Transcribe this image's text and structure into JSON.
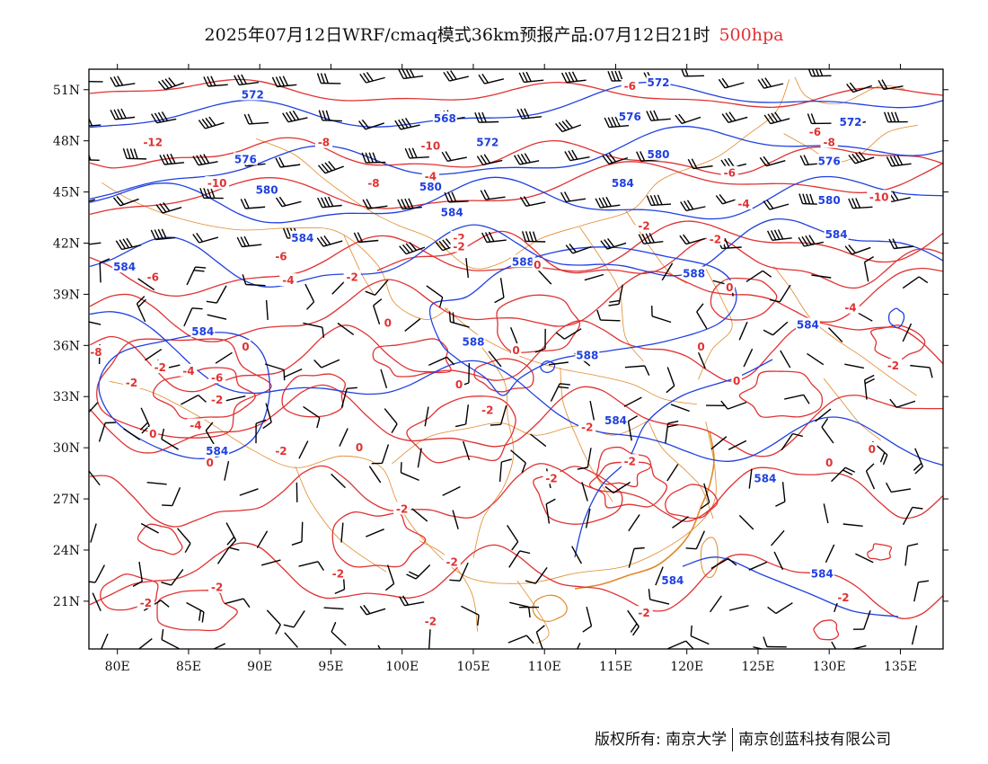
{
  "title": {
    "main": "2025年07月12日WRF/cmaq模式36km预报产品:07月12日21时",
    "level": "500hpa"
  },
  "axes": {
    "lat_labels": [
      "51N",
      "48N",
      "45N",
      "42N",
      "39N",
      "36N",
      "33N",
      "30N",
      "27N",
      "24N",
      "21N"
    ],
    "lon_labels": [
      "80E",
      "85E",
      "90E",
      "95E",
      "100E",
      "105E",
      "110E",
      "115E",
      "120E",
      "125E",
      "130E",
      "135E"
    ]
  },
  "colors": {
    "height_contour": "#2040e0",
    "temperature_contour": "#e03232",
    "boundary": "#e08a2a",
    "wind_barb": "#000000"
  },
  "height_labels": [
    {
      "text": "572",
      "lon": 89.5,
      "lat": 50.7
    },
    {
      "text": "572",
      "lon": 106,
      "lat": 47.9
    },
    {
      "text": "572",
      "lon": 118,
      "lat": 51.4
    },
    {
      "text": "572",
      "lon": 131.5,
      "lat": 49.1
    },
    {
      "text": "568",
      "lon": 103,
      "lat": 49.3
    },
    {
      "text": "576",
      "lon": 89,
      "lat": 46.9
    },
    {
      "text": "576",
      "lon": 116,
      "lat": 49.4
    },
    {
      "text": "576",
      "lon": 130,
      "lat": 46.8
    },
    {
      "text": "580",
      "lon": 90.5,
      "lat": 45.1
    },
    {
      "text": "580",
      "lon": 102,
      "lat": 45.3
    },
    {
      "text": "580",
      "lon": 118,
      "lat": 47.2
    },
    {
      "text": "580",
      "lon": 130,
      "lat": 44.5
    },
    {
      "text": "584",
      "lon": 93,
      "lat": 42.3
    },
    {
      "text": "584",
      "lon": 103.5,
      "lat": 43.8
    },
    {
      "text": "584",
      "lon": 115.5,
      "lat": 45.5
    },
    {
      "text": "584",
      "lon": 130.5,
      "lat": 42.5
    },
    {
      "text": "584",
      "lon": 80.5,
      "lat": 40.6
    },
    {
      "text": "584",
      "lon": 86,
      "lat": 36.8
    },
    {
      "text": "584",
      "lon": 128.5,
      "lat": 37.2
    },
    {
      "text": "584",
      "lon": 115,
      "lat": 31.6
    },
    {
      "text": "584",
      "lon": 87,
      "lat": 29.8
    },
    {
      "text": "584",
      "lon": 125.5,
      "lat": 28.2
    },
    {
      "text": "584",
      "lon": 119,
      "lat": 22.2
    },
    {
      "text": "584",
      "lon": 129.5,
      "lat": 22.6
    },
    {
      "text": "588",
      "lon": 108.5,
      "lat": 40.9
    },
    {
      "text": "588",
      "lon": 120.5,
      "lat": 40.2
    },
    {
      "text": "588",
      "lon": 105,
      "lat": 36.2
    },
    {
      "text": "588",
      "lon": 113,
      "lat": 35.4
    }
  ],
  "temp_labels": [
    {
      "text": "-6",
      "lon": 116,
      "lat": 51.2
    },
    {
      "text": "-6",
      "lon": 129,
      "lat": 48.5
    },
    {
      "text": "-6",
      "lon": 123,
      "lat": 46.1
    },
    {
      "text": "-6",
      "lon": 91.5,
      "lat": 41.2
    },
    {
      "text": "-6",
      "lon": 82.5,
      "lat": 40
    },
    {
      "text": "-6",
      "lon": 87,
      "lat": 34.1
    },
    {
      "text": "-8",
      "lon": 94.5,
      "lat": 47.9
    },
    {
      "text": "-8",
      "lon": 98,
      "lat": 45.5
    },
    {
      "text": "-8",
      "lon": 130,
      "lat": 47.9
    },
    {
      "text": "-8",
      "lon": 78.5,
      "lat": 35.6
    },
    {
      "text": "-10",
      "lon": 87,
      "lat": 45.5
    },
    {
      "text": "-10",
      "lon": 102,
      "lat": 47.7
    },
    {
      "text": "-10",
      "lon": 133.5,
      "lat": 44.7
    },
    {
      "text": "-12",
      "lon": 82.5,
      "lat": 47.9
    },
    {
      "text": "-4",
      "lon": 102,
      "lat": 45.9
    },
    {
      "text": "-4",
      "lon": 124,
      "lat": 44.3
    },
    {
      "text": "-4",
      "lon": 92,
      "lat": 39.8
    },
    {
      "text": "-4",
      "lon": 131.5,
      "lat": 38.2
    },
    {
      "text": "-4",
      "lon": 85.5,
      "lat": 31.3
    },
    {
      "text": "-4",
      "lon": 85,
      "lat": 34.5
    },
    {
      "text": "-2",
      "lon": 117,
      "lat": 43
    },
    {
      "text": "-2",
      "lon": 122,
      "lat": 42.2
    },
    {
      "text": "-2",
      "lon": 104,
      "lat": 42.3
    },
    {
      "text": "-2",
      "lon": 104,
      "lat": 41.8
    },
    {
      "text": "-2",
      "lon": 96.5,
      "lat": 40
    },
    {
      "text": "-2",
      "lon": 83,
      "lat": 34.7
    },
    {
      "text": "-2",
      "lon": 81,
      "lat": 33.8
    },
    {
      "text": "-2",
      "lon": 87,
      "lat": 32.8
    },
    {
      "text": "-2",
      "lon": 91.5,
      "lat": 29.8
    },
    {
      "text": "-2",
      "lon": 106,
      "lat": 32.2
    },
    {
      "text": "-2",
      "lon": 113,
      "lat": 31.2
    },
    {
      "text": "-2",
      "lon": 116,
      "lat": 29.2
    },
    {
      "text": "-2",
      "lon": 110.5,
      "lat": 28.2
    },
    {
      "text": "-2",
      "lon": 100,
      "lat": 26.4
    },
    {
      "text": "-2",
      "lon": 103.5,
      "lat": 23.3
    },
    {
      "text": "-2",
      "lon": 95.5,
      "lat": 22.6
    },
    {
      "text": "-2",
      "lon": 87,
      "lat": 21.8
    },
    {
      "text": "-2",
      "lon": 82,
      "lat": 20.9
    },
    {
      "text": "-2",
      "lon": 102,
      "lat": 19.8
    },
    {
      "text": "-2",
      "lon": 117,
      "lat": 20.3
    },
    {
      "text": "-2",
      "lon": 131,
      "lat": 21.2
    },
    {
      "text": "-2",
      "lon": 134.5,
      "lat": 34.8
    },
    {
      "text": "0",
      "lon": 109.5,
      "lat": 40.7
    },
    {
      "text": "0",
      "lon": 123,
      "lat": 39.4
    },
    {
      "text": "0",
      "lon": 99,
      "lat": 37.3
    },
    {
      "text": "0",
      "lon": 89,
      "lat": 35.9
    },
    {
      "text": "0",
      "lon": 108,
      "lat": 35.7
    },
    {
      "text": "0",
      "lon": 121,
      "lat": 35.9
    },
    {
      "text": "0",
      "lon": 123.5,
      "lat": 33.9
    },
    {
      "text": "0",
      "lon": 104,
      "lat": 33.7
    },
    {
      "text": "0",
      "lon": 97,
      "lat": 30
    },
    {
      "text": "0",
      "lon": 82.5,
      "lat": 30.8
    },
    {
      "text": "0",
      "lon": 86.5,
      "lat": 29.1
    },
    {
      "text": "0",
      "lon": 133,
      "lat": 29.9
    },
    {
      "text": "0",
      "lon": 130,
      "lat": 29.1
    }
  ],
  "footer": {
    "left": "版权所有: 南京大学",
    "right": "南京创蓝科技有限公司"
  }
}
